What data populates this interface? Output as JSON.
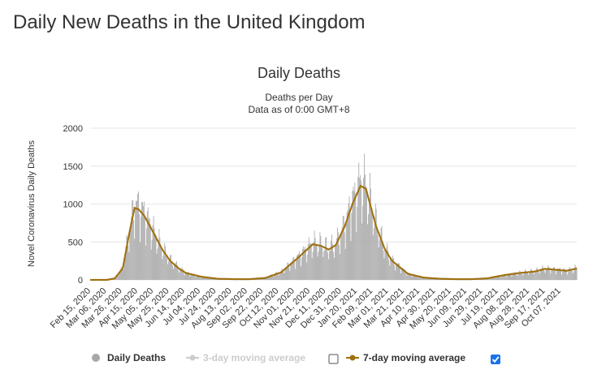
{
  "page": {
    "title": "Daily New Deaths in the United Kingdom"
  },
  "colors": {
    "bars": "#a8a8a8",
    "avg7": "#a0700f",
    "avg3": "#cccccc",
    "grid": "#e6e6e6",
    "checkbox": "#1a73e8"
  },
  "legend": {
    "daily_deaths": "Daily Deaths",
    "avg3": "3-day moving average",
    "avg3_checked": false,
    "avg7": "7-day moving average",
    "avg7_checked": true
  },
  "chart_data": {
    "type": "bar",
    "title": "Daily Deaths",
    "subtitle_1": "Deaths per Day",
    "subtitle_2": "Data as of 0:00 GMT+8",
    "ylabel": "Novel Coronavirus Daily Deaths",
    "ylim": [
      0,
      2000
    ],
    "yticks": [
      0,
      500,
      1000,
      1500,
      2000
    ],
    "grid": true,
    "legend_position": "bottom",
    "x_range": [
      "2020-02-15",
      "2021-10-20"
    ],
    "x_tick_labels": [
      "Feb 15, 2020",
      "Mar 06, 2020",
      "Mar 26, 2020",
      "Apr 15, 2020",
      "May 05, 2020",
      "May 25, 2020",
      "Jun 14, 2020",
      "Jul 04, 2020",
      "Jul 24, 2020",
      "Aug 13, 2020",
      "Sep 02, 2020",
      "Sep 22, 2020",
      "Oct 12, 2020",
      "Nov 01, 2020",
      "Nov 21, 2020",
      "Dec 11, 2020",
      "Dec 31, 2020",
      "Jan 20, 2021",
      "Feb 09, 2021",
      "Mar 01, 2021",
      "Mar 21, 2021",
      "Apr 10, 2021",
      "Apr 30, 2021",
      "May 20, 2021",
      "Jun 09, 2021",
      "Jun 29, 2021",
      "Jul 19, 2021",
      "Aug 08, 2021",
      "Aug 28, 2021",
      "Sep 17, 2021",
      "Oct 07, 2021"
    ],
    "series": [
      {
        "name": "Daily Deaths",
        "kind": "bars",
        "anchors": [
          [
            "2020-02-15",
            0
          ],
          [
            "2020-03-06",
            0
          ],
          [
            "2020-03-16",
            20
          ],
          [
            "2020-03-26",
            150
          ],
          [
            "2020-04-04",
            650
          ],
          [
            "2020-04-10",
            950
          ],
          [
            "2020-04-15",
            930
          ],
          [
            "2020-04-22",
            850
          ],
          [
            "2020-05-05",
            600
          ],
          [
            "2020-05-15",
            400
          ],
          [
            "2020-05-25",
            250
          ],
          [
            "2020-06-05",
            150
          ],
          [
            "2020-06-14",
            90
          ],
          [
            "2020-07-04",
            40
          ],
          [
            "2020-07-24",
            15
          ],
          [
            "2020-08-13",
            10
          ],
          [
            "2020-09-02",
            10
          ],
          [
            "2020-09-22",
            25
          ],
          [
            "2020-10-12",
            100
          ],
          [
            "2020-11-01",
            280
          ],
          [
            "2020-11-21",
            470
          ],
          [
            "2020-12-01",
            450
          ],
          [
            "2020-12-11",
            400
          ],
          [
            "2020-12-20",
            460
          ],
          [
            "2020-12-31",
            700
          ],
          [
            "2021-01-10",
            1000
          ],
          [
            "2021-01-20",
            1240
          ],
          [
            "2021-01-27",
            1200
          ],
          [
            "2021-02-09",
            700
          ],
          [
            "2021-02-20",
            400
          ],
          [
            "2021-03-01",
            250
          ],
          [
            "2021-03-21",
            80
          ],
          [
            "2021-04-10",
            30
          ],
          [
            "2021-04-30",
            15
          ],
          [
            "2021-05-20",
            10
          ],
          [
            "2021-06-09",
            10
          ],
          [
            "2021-06-29",
            20
          ],
          [
            "2021-07-19",
            60
          ],
          [
            "2021-08-08",
            90
          ],
          [
            "2021-08-28",
            110
          ],
          [
            "2021-09-10",
            145
          ],
          [
            "2021-09-17",
            140
          ],
          [
            "2021-10-07",
            120
          ],
          [
            "2021-10-20",
            150
          ]
        ]
      },
      {
        "name": "7-day moving average",
        "kind": "line",
        "anchors": [
          [
            "2020-02-15",
            0
          ],
          [
            "2020-03-06",
            0
          ],
          [
            "2020-03-16",
            20
          ],
          [
            "2020-03-26",
            150
          ],
          [
            "2020-04-04",
            650
          ],
          [
            "2020-04-10",
            950
          ],
          [
            "2020-04-15",
            930
          ],
          [
            "2020-04-22",
            850
          ],
          [
            "2020-05-05",
            600
          ],
          [
            "2020-05-15",
            400
          ],
          [
            "2020-05-25",
            250
          ],
          [
            "2020-06-05",
            150
          ],
          [
            "2020-06-14",
            90
          ],
          [
            "2020-07-04",
            40
          ],
          [
            "2020-07-24",
            15
          ],
          [
            "2020-08-13",
            10
          ],
          [
            "2020-09-02",
            10
          ],
          [
            "2020-09-22",
            25
          ],
          [
            "2020-10-12",
            100
          ],
          [
            "2020-11-01",
            280
          ],
          [
            "2020-11-21",
            470
          ],
          [
            "2020-12-01",
            450
          ],
          [
            "2020-12-11",
            400
          ],
          [
            "2020-12-20",
            460
          ],
          [
            "2020-12-31",
            700
          ],
          [
            "2021-01-10",
            1000
          ],
          [
            "2021-01-20",
            1240
          ],
          [
            "2021-01-27",
            1200
          ],
          [
            "2021-02-09",
            700
          ],
          [
            "2021-02-20",
            400
          ],
          [
            "2021-03-01",
            250
          ],
          [
            "2021-03-21",
            80
          ],
          [
            "2021-04-10",
            30
          ],
          [
            "2021-04-30",
            15
          ],
          [
            "2021-05-20",
            10
          ],
          [
            "2021-06-09",
            10
          ],
          [
            "2021-06-29",
            20
          ],
          [
            "2021-07-19",
            60
          ],
          [
            "2021-08-08",
            90
          ],
          [
            "2021-08-28",
            110
          ],
          [
            "2021-09-10",
            145
          ],
          [
            "2021-09-17",
            140
          ],
          [
            "2021-10-07",
            120
          ],
          [
            "2021-10-20",
            150
          ]
        ]
      }
    ]
  }
}
